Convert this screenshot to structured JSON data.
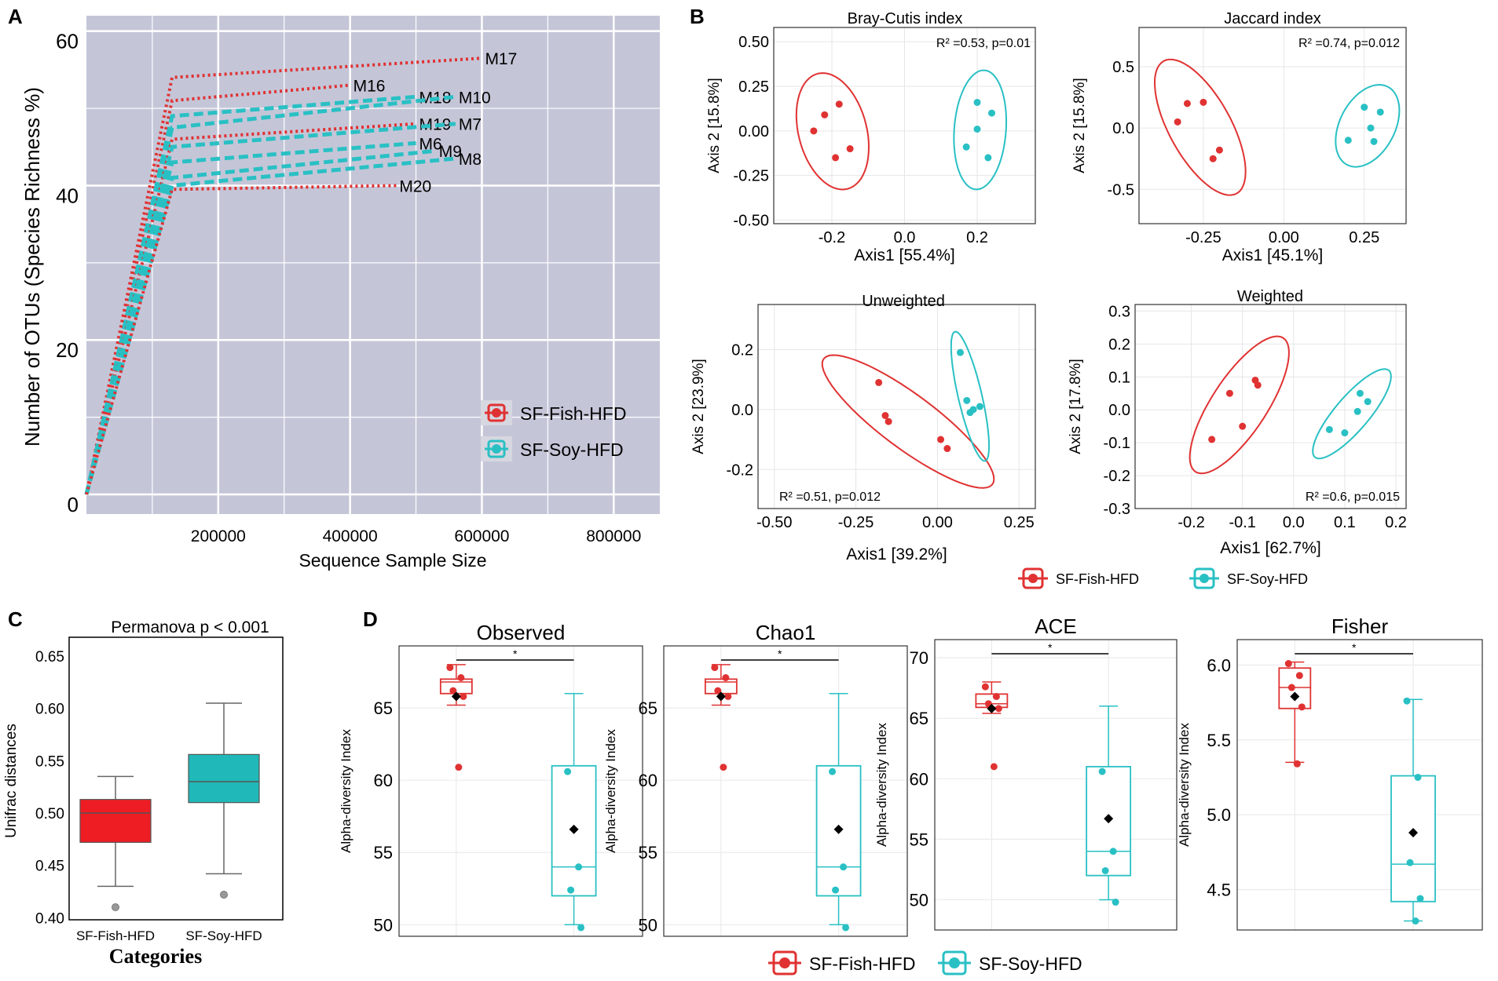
{
  "colors": {
    "fish": "#e03232",
    "soy": "#29c0c4",
    "panelA_bg": "#c4c6d8",
    "grid": "#ebebeb"
  },
  "legend": {
    "fish": "SF-Fish-HFD",
    "soy": "SF-Soy-HFD"
  },
  "panel_letters": {
    "a": "A",
    "b": "B",
    "c": "C",
    "d": "D"
  },
  "chart_data": [
    {
      "id": "A",
      "type": "line",
      "title": "",
      "xlabel": "Sequence Sample Size",
      "ylabel": "Number of OTUs (Species Richness %)",
      "xlim": [
        0,
        870000
      ],
      "ylim": [
        0,
        62
      ],
      "x_ticks": [
        200000,
        400000,
        600000,
        800000
      ],
      "y_ticks": [
        0,
        20,
        40,
        60
      ],
      "series": [
        {
          "name": "M17",
          "group": "fish",
          "points": [
            [
              0,
              0
            ],
            [
              130000,
              54
            ],
            [
              600000,
              56.5
            ]
          ]
        },
        {
          "name": "M16",
          "group": "fish",
          "points": [
            [
              0,
              0
            ],
            [
              130000,
              51
            ],
            [
              400000,
              53
            ]
          ]
        },
        {
          "name": "M18",
          "group": "soy",
          "points": [
            [
              0,
              0
            ],
            [
              130000,
              49
            ],
            [
              500000,
              51.5
            ]
          ]
        },
        {
          "name": "M10",
          "group": "soy",
          "points": [
            [
              0,
              0
            ],
            [
              130000,
              47.5
            ],
            [
              560000,
              51.5
            ]
          ]
        },
        {
          "name": "M19",
          "group": "fish",
          "points": [
            [
              0,
              0
            ],
            [
              130000,
              46
            ],
            [
              500000,
              48
            ]
          ]
        },
        {
          "name": "M7",
          "group": "soy",
          "points": [
            [
              0,
              0
            ],
            [
              130000,
              45
            ],
            [
              560000,
              48
            ]
          ]
        },
        {
          "name": "M6",
          "group": "soy",
          "points": [
            [
              0,
              0
            ],
            [
              130000,
              43
            ],
            [
              500000,
              45.5
            ]
          ]
        },
        {
          "name": "M9",
          "group": "soy",
          "points": [
            [
              0,
              0
            ],
            [
              130000,
              41
            ],
            [
              530000,
              44.5
            ]
          ]
        },
        {
          "name": "M8",
          "group": "soy",
          "points": [
            [
              0,
              0
            ],
            [
              130000,
              40
            ],
            [
              560000,
              43.5
            ]
          ]
        },
        {
          "name": "M20",
          "group": "fish",
          "points": [
            [
              0,
              0
            ],
            [
              130000,
              39.5
            ],
            [
              470000,
              40
            ]
          ]
        }
      ]
    },
    {
      "id": "B1",
      "type": "scatter",
      "title": "Bray-Cutis index",
      "xlabel": "Axis1 [55.4%]",
      "ylabel": "Axis 2 [15.8%]",
      "annotation": "R² =0.53, p=0.01",
      "xlim": [
        -0.36,
        0.36
      ],
      "ylim": [
        -0.52,
        0.58
      ],
      "x_ticks": [
        "-0.2",
        "0.0",
        "0.2"
      ],
      "x_tick_values": [
        -0.2,
        0.0,
        0.2
      ],
      "y_ticks": [
        "0.50",
        "0.25",
        "0.00",
        "-0.25",
        "-0.50"
      ],
      "y_tick_values": [
        0.5,
        0.25,
        0.0,
        -0.25,
        -0.5
      ],
      "fish": [
        [
          -0.22,
          0.09
        ],
        [
          -0.25,
          0.0
        ],
        [
          -0.18,
          0.15
        ],
        [
          -0.15,
          -0.1
        ],
        [
          -0.19,
          -0.15
        ]
      ],
      "soy": [
        [
          0.2,
          0.16
        ],
        [
          0.24,
          0.1
        ],
        [
          0.2,
          0.01
        ],
        [
          0.17,
          -0.09
        ],
        [
          0.23,
          -0.15
        ]
      ]
    },
    {
      "id": "B2",
      "type": "scatter",
      "title": "Jaccard index",
      "xlabel": "Axis1   [45.1%]",
      "ylabel": "Axis 2 [15.8%]",
      "annotation": "R² =0.74, p=0.012",
      "xlim": [
        -0.45,
        0.38
      ],
      "ylim": [
        -0.78,
        0.82
      ],
      "x_ticks": [
        "-0.25",
        "0.00",
        "0.25"
      ],
      "x_tick_values": [
        -0.25,
        0.0,
        0.25
      ],
      "y_ticks": [
        "0.5",
        "0.0",
        "-0.5"
      ],
      "y_tick_values": [
        0.5,
        0.0,
        -0.5
      ],
      "fish": [
        [
          -0.3,
          0.2
        ],
        [
          -0.25,
          0.21
        ],
        [
          -0.33,
          0.05
        ],
        [
          -0.2,
          -0.18
        ],
        [
          -0.22,
          -0.25
        ]
      ],
      "soy": [
        [
          0.25,
          0.17
        ],
        [
          0.3,
          0.13
        ],
        [
          0.27,
          0.0
        ],
        [
          0.2,
          -0.1
        ],
        [
          0.28,
          -0.11
        ]
      ]
    },
    {
      "id": "B3",
      "type": "scatter",
      "title": "Unweighted",
      "xlabel": "Axis1 [39.2%]",
      "ylabel": "Axis 2 [23.9%]",
      "annotation": "R² =0.51, p=0.012",
      "xlim": [
        -0.55,
        0.3
      ],
      "ylim": [
        -0.33,
        0.35
      ],
      "x_ticks": [
        "-0.50",
        "-0.25",
        "0.00",
        "0.25"
      ],
      "x_tick_values": [
        -0.5,
        -0.25,
        0.0,
        0.25
      ],
      "y_ticks": [
        "0.2",
        "0.0",
        "-0.2"
      ],
      "y_tick_values": [
        0.2,
        0.0,
        -0.2
      ],
      "fish": [
        [
          -0.18,
          0.09
        ],
        [
          -0.16,
          -0.02
        ],
        [
          -0.15,
          -0.04
        ],
        [
          0.01,
          -0.1
        ],
        [
          0.03,
          -0.13
        ]
      ],
      "soy": [
        [
          0.07,
          0.19
        ],
        [
          0.09,
          0.03
        ],
        [
          0.11,
          0.0
        ],
        [
          0.13,
          0.01
        ],
        [
          0.1,
          -0.01
        ]
      ]
    },
    {
      "id": "B4",
      "type": "scatter",
      "title": "Weighted",
      "xlabel": "Axis1 [62.7%]",
      "ylabel": "Axis 2 [17.8%]",
      "annotation": "R² =0.6, p=0.015",
      "xlim": [
        -0.31,
        0.22
      ],
      "ylim": [
        -0.3,
        0.32
      ],
      "x_ticks": [
        "-0.2",
        "-0.1",
        "0.0",
        "0.1",
        "0.2"
      ],
      "x_tick_values": [
        -0.2,
        -0.1,
        0.0,
        0.1,
        0.2
      ],
      "y_ticks": [
        "0.3",
        "0.2",
        "0.1",
        "0.0",
        "-0.1",
        "-0.2",
        "-0.3"
      ],
      "y_tick_values": [
        0.3,
        0.2,
        0.1,
        0.0,
        -0.1,
        -0.2,
        -0.3
      ],
      "fish": [
        [
          -0.075,
          0.09
        ],
        [
          -0.07,
          0.075
        ],
        [
          -0.125,
          0.05
        ],
        [
          -0.1,
          -0.05
        ],
        [
          -0.16,
          -0.09
        ]
      ],
      "soy": [
        [
          0.13,
          0.05
        ],
        [
          0.145,
          0.025
        ],
        [
          0.125,
          -0.005
        ],
        [
          0.07,
          -0.06
        ],
        [
          0.1,
          -0.07
        ]
      ]
    },
    {
      "id": "C",
      "type": "box",
      "title": "Permanova p < 0.001",
      "xlabel": "Categories",
      "ylabel": "Unifrac distances",
      "ylim": [
        0.398,
        0.668
      ],
      "y_ticks": [
        "0.65",
        "0.60",
        "0.55",
        "0.50",
        "0.45",
        "0.40"
      ],
      "y_tick_values": [
        0.65,
        0.6,
        0.55,
        0.5,
        0.45,
        0.4
      ],
      "categories": [
        "SF-Fish-HFD",
        "SF-Soy-HFD"
      ],
      "boxes": [
        {
          "group": "fish",
          "whisker_low": 0.43,
          "q1": 0.472,
          "median": 0.5,
          "q3": 0.513,
          "whisker_high": 0.535,
          "outliers": [
            0.41
          ]
        },
        {
          "group": "soy",
          "whisker_low": 0.442,
          "q1": 0.51,
          "median": 0.53,
          "q3": 0.556,
          "whisker_high": 0.605,
          "outliers": [
            0.422
          ]
        }
      ]
    },
    {
      "id": "D1",
      "type": "box",
      "title": "Observed",
      "ylabel": "Alpha-diversity Index",
      "sig": "*",
      "ylim": [
        49.2,
        69.3
      ],
      "y_ticks": [
        "65",
        "60",
        "55",
        "50"
      ],
      "y_tick_values": [
        65,
        60,
        55,
        50
      ],
      "boxes": [
        {
          "group": "fish",
          "whisker_low": 65.2,
          "q1": 66.0,
          "median": 66.8,
          "q3": 67.0,
          "whisker_high": 68.0,
          "mean": 65.8,
          "points": [
            67.8,
            67.1,
            66.2,
            65.8,
            60.9
          ]
        },
        {
          "group": "soy",
          "whisker_low": 50.0,
          "q1": 52.0,
          "median": 54.0,
          "q3": 61.0,
          "whisker_high": 66.0,
          "mean": 56.6,
          "points": [
            60.6,
            54.0,
            52.4,
            49.8
          ]
        }
      ]
    },
    {
      "id": "D2",
      "type": "box",
      "title": "Chao1",
      "ylabel": "Alpha-diversity Index",
      "sig": "*",
      "ylim": [
        49.2,
        69.3
      ],
      "y_ticks": [
        "65",
        "60",
        "55",
        "50"
      ],
      "y_tick_values": [
        65,
        60,
        55,
        50
      ],
      "boxes": [
        {
          "group": "fish",
          "whisker_low": 65.2,
          "q1": 66.0,
          "median": 66.8,
          "q3": 67.0,
          "whisker_high": 68.0,
          "mean": 65.8,
          "points": [
            67.8,
            67.1,
            66.2,
            65.8,
            60.9
          ]
        },
        {
          "group": "soy",
          "whisker_low": 50.0,
          "q1": 52.0,
          "median": 54.0,
          "q3": 61.0,
          "whisker_high": 66.0,
          "mean": 56.6,
          "points": [
            60.6,
            54.0,
            52.4,
            49.8
          ]
        }
      ]
    },
    {
      "id": "D3",
      "type": "box",
      "title": "ACE",
      "ylabel": "Alpha-diversity Index",
      "sig": "*",
      "ylim": [
        47.5,
        71.5
      ],
      "y_ticks": [
        "70",
        "65",
        "60",
        "55",
        "50"
      ],
      "y_tick_values": [
        70,
        65,
        60,
        55,
        50
      ],
      "boxes": [
        {
          "group": "fish",
          "whisker_low": 65.4,
          "q1": 65.9,
          "median": 66.2,
          "q3": 67.0,
          "whisker_high": 68.0,
          "mean": 65.8,
          "points": [
            67.6,
            66.8,
            66.2,
            65.8,
            61.0
          ]
        },
        {
          "group": "soy",
          "whisker_low": 50.0,
          "q1": 52.0,
          "median": 54.0,
          "q3": 61.0,
          "whisker_high": 66.0,
          "mean": 56.7,
          "points": [
            60.6,
            54.0,
            52.4,
            49.8
          ]
        }
      ]
    },
    {
      "id": "D4",
      "type": "box",
      "title": "Fisher",
      "ylabel": "Alpha-diversity Index",
      "sig": "*",
      "ylim": [
        4.23,
        6.17
      ],
      "y_ticks": [
        "6.0",
        "5.5",
        "5.0",
        "4.5"
      ],
      "y_tick_values": [
        6.0,
        5.5,
        5.0,
        4.5
      ],
      "boxes": [
        {
          "group": "fish",
          "whisker_low": 5.35,
          "q1": 5.71,
          "median": 5.85,
          "q3": 5.98,
          "whisker_high": 6.02,
          "mean": 5.79,
          "points": [
            6.01,
            5.93,
            5.85,
            5.72,
            5.34
          ]
        },
        {
          "group": "soy",
          "whisker_low": 4.29,
          "q1": 4.42,
          "median": 4.67,
          "q3": 5.26,
          "whisker_high": 5.77,
          "mean": 4.88,
          "points": [
            5.76,
            5.25,
            4.68,
            4.44,
            4.29
          ]
        }
      ]
    }
  ]
}
